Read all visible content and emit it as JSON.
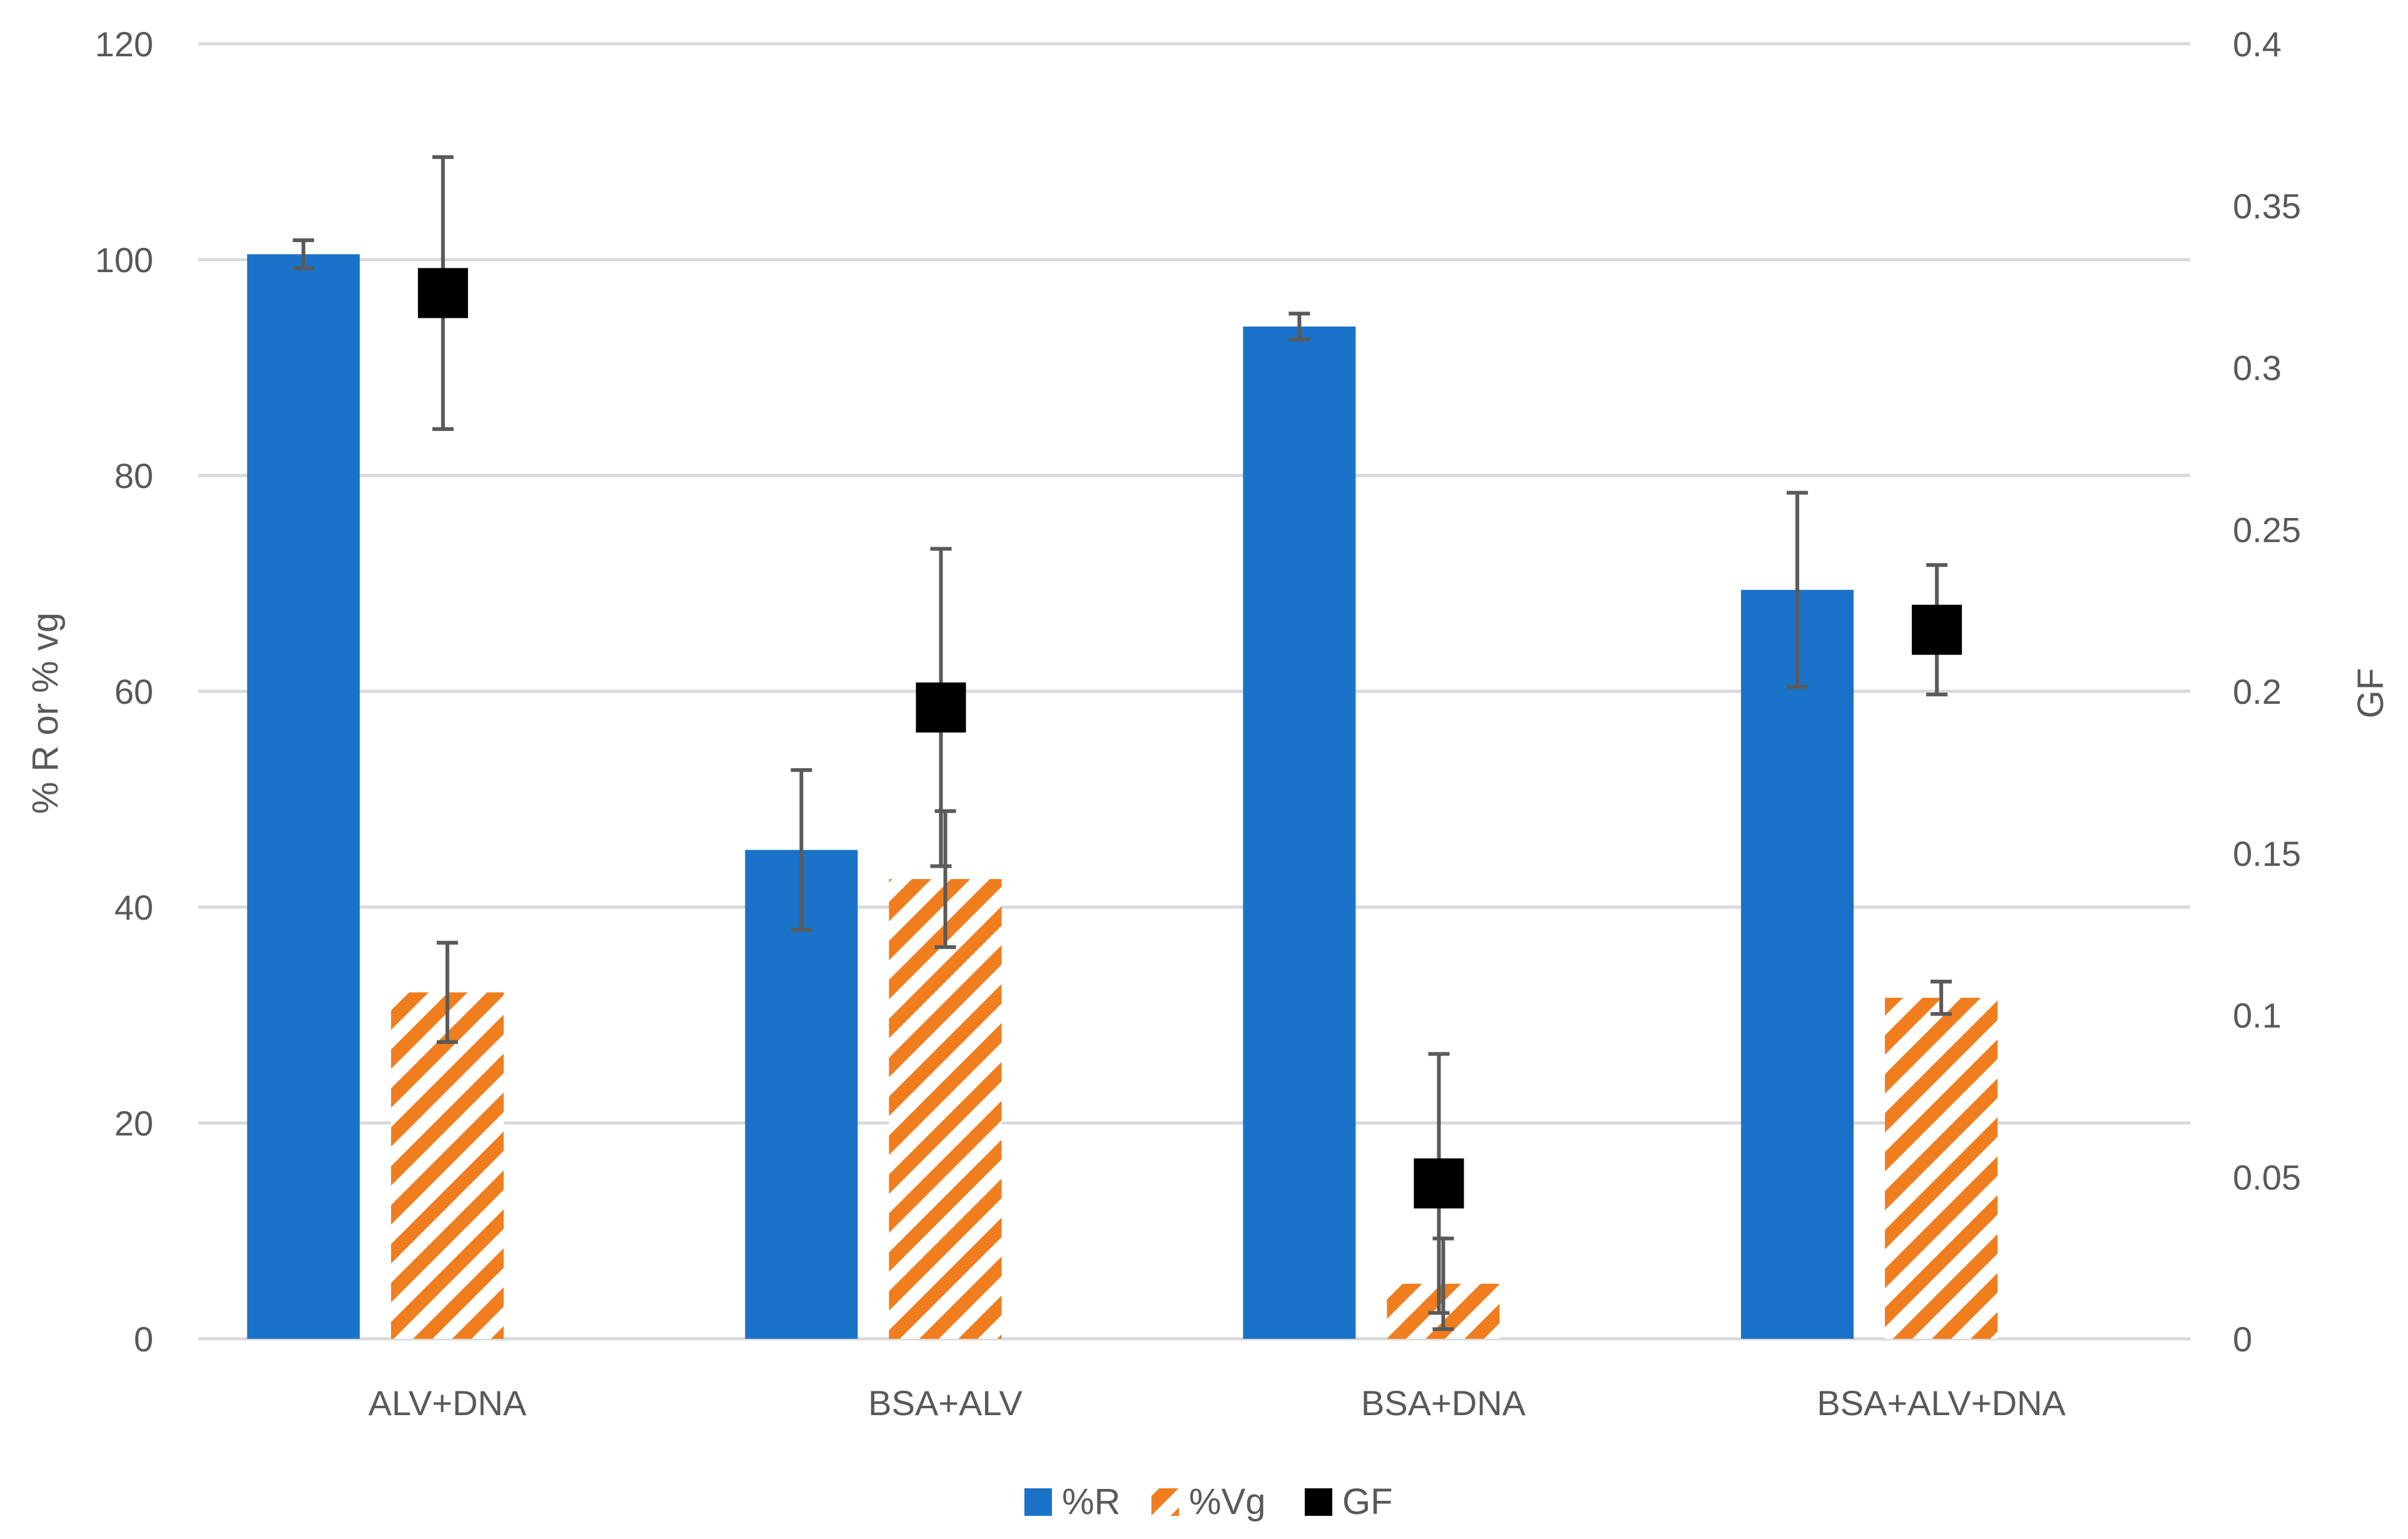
{
  "chart_data": {
    "type": "bar",
    "title": "",
    "xlabel": "",
    "ylabel": "% R or % vg",
    "y2label": "GF",
    "categories": [
      "ALV+DNA",
      "BSA+ALV",
      "BSA+DNA",
      "BSA+ALV+DNA"
    ],
    "ylim": [
      0,
      120
    ],
    "y2lim": [
      0,
      0.4
    ],
    "yticks": [
      "0",
      "20",
      "40",
      "60",
      "80",
      "100",
      "120"
    ],
    "y2ticks": [
      "0",
      "0.05",
      "0.1",
      "0.15",
      "0.2",
      "0.25",
      "0.3",
      "0.35",
      "0.4"
    ],
    "grid": true,
    "legend_position": "bottom",
    "series": [
      {
        "name": "%R",
        "kind": "bar",
        "axis": "left",
        "color": "#1a73c8",
        "pattern": "solid",
        "values": [
          100.5,
          45.3,
          93.8,
          69.4
        ],
        "errors": [
          1.3,
          7.4,
          1.2,
          9.0
        ]
      },
      {
        "name": "%Vg",
        "kind": "bar",
        "axis": "left",
        "color": "#f07d1e",
        "pattern": "diagonal-stripes",
        "values": [
          32.1,
          42.6,
          5.1,
          31.6
        ],
        "errors": [
          4.6,
          6.3,
          4.2,
          1.5
        ]
      },
      {
        "name": "GF",
        "kind": "marker",
        "axis": "right",
        "color": "#000000",
        "marker": "square",
        "values": [
          0.323,
          0.195,
          0.048,
          0.219
        ],
        "errors": [
          0.042,
          0.049,
          0.04,
          0.02
        ]
      }
    ]
  }
}
